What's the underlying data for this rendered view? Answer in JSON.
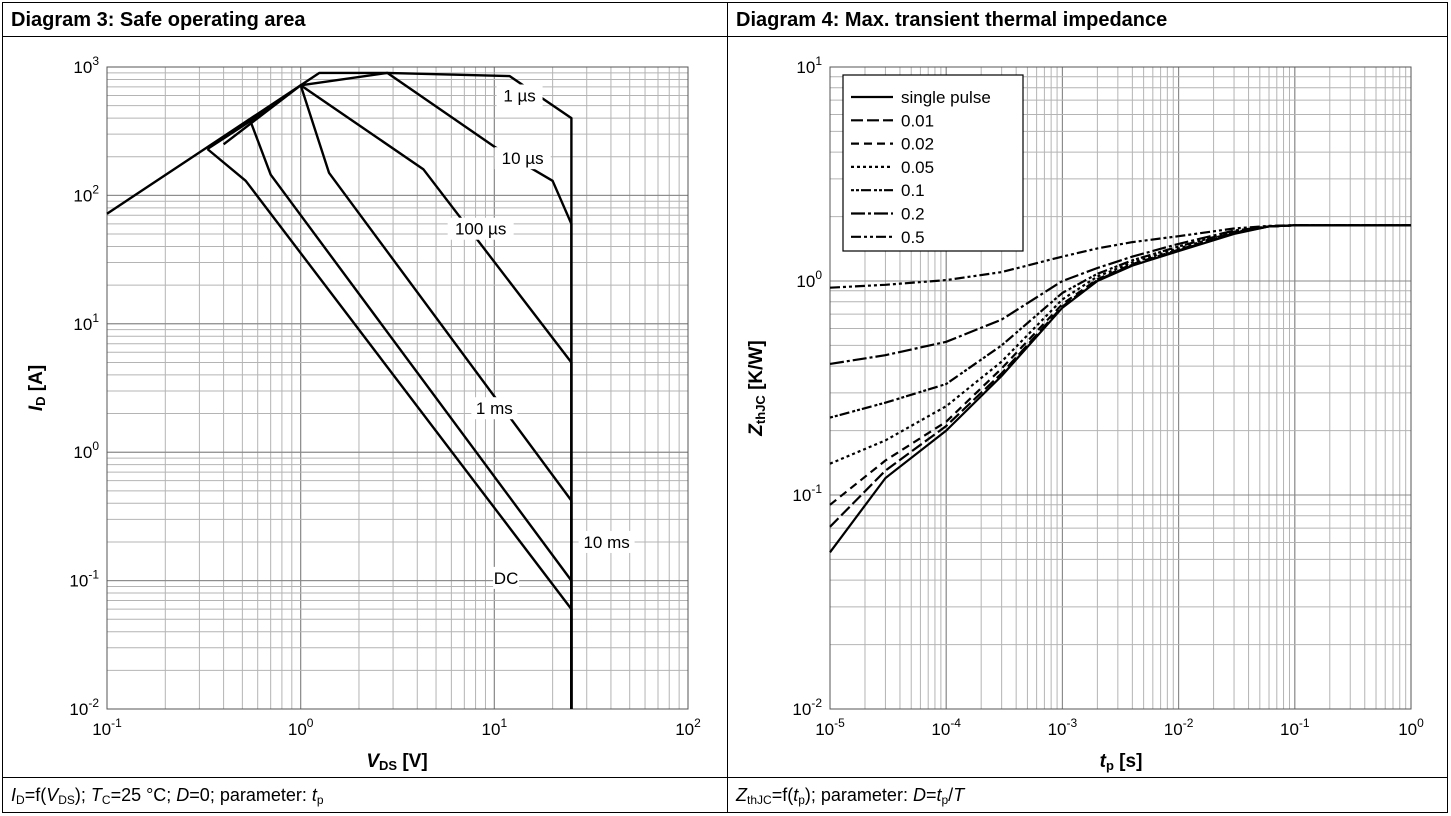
{
  "panels": [
    {
      "title": "Diagram 3: Safe operating area",
      "caption": {
        "p1": "I",
        "p1_sub": "D",
        "p2": "=f(",
        "p3": "V",
        "p3_sub": "DS",
        "p4": "); ",
        "p5": "T",
        "p5_sub": "C",
        "p6": "=25 °C; ",
        "p7": "D",
        "p8": "=0; parameter: ",
        "p9": "t",
        "p9_sub": "p"
      }
    },
    {
      "title": "Diagram 4: Max. transient thermal impedance",
      "caption": {
        "p1": "Z",
        "p1_sub": "thJC",
        "p2": "=f(",
        "p3": "t",
        "p3_sub": "p",
        "p4": "); parameter: ",
        "p5": "D",
        "p6": "=",
        "p7": "t",
        "p7_sub": "p",
        "p8": "/",
        "p9": "T"
      }
    }
  ],
  "chart_data": [
    {
      "type": "line",
      "title": "Diagram 3: Safe operating area",
      "xlabel": {
        "main": "V",
        "sub": "DS",
        "unit": " [V]"
      },
      "ylabel": {
        "main": "I",
        "sub": "D",
        "unit": " [A]"
      },
      "x_scale": "log",
      "y_scale": "log",
      "xlim": [
        0.1,
        100
      ],
      "ylim": [
        0.01,
        1000
      ],
      "grid": true,
      "x_ticks": [
        {
          "base": "10",
          "exp": "-1",
          "value": 0.1
        },
        {
          "base": "10",
          "exp": "0",
          "value": 1
        },
        {
          "base": "10",
          "exp": "1",
          "value": 10
        },
        {
          "base": "10",
          "exp": "2",
          "value": 100
        }
      ],
      "y_ticks": [
        {
          "base": "10",
          "exp": "-2",
          "value": 0.01
        },
        {
          "base": "10",
          "exp": "-1",
          "value": 0.1
        },
        {
          "base": "10",
          "exp": "0",
          "value": 1
        },
        {
          "base": "10",
          "exp": "1",
          "value": 10
        },
        {
          "base": "10",
          "exp": "2",
          "value": 100
        },
        {
          "base": "10",
          "exp": "3",
          "value": 1000
        }
      ],
      "series": [
        {
          "name": "1 µs",
          "label_at": [
            13.5,
            600
          ],
          "points": [
            [
              0.1,
              72
            ],
            [
              1.25,
              900
            ],
            [
              2.8,
              900
            ],
            [
              12,
              850
            ],
            [
              25,
              400
            ],
            [
              25,
              0.01
            ]
          ]
        },
        {
          "name": "10 µs",
          "label_at": [
            14,
            195
          ],
          "points": [
            [
              1,
              720
            ],
            [
              2.8,
              900
            ],
            [
              10,
              240
            ],
            [
              20,
              130
            ],
            [
              25,
              60
            ],
            [
              25,
              0.01
            ]
          ]
        },
        {
          "name": "100 µs",
          "label_at": [
            8.5,
            55
          ],
          "points": [
            [
              0.55,
              380
            ],
            [
              1,
              720
            ],
            [
              4.3,
              160
            ],
            [
              25,
              5
            ],
            [
              25,
              0.01
            ]
          ]
        },
        {
          "name": "1 ms",
          "label_at": [
            10,
            2.2
          ],
          "points": [
            [
              0.4,
              250
            ],
            [
              1,
              720
            ],
            [
              1.4,
              150
            ],
            [
              25,
              0.42
            ],
            [
              25,
              0.01
            ]
          ]
        },
        {
          "name": "10 ms",
          "label_at": [
            38,
            0.2
          ],
          "points": [
            [
              0.33,
              230
            ],
            [
              0.55,
              380
            ],
            [
              0.7,
              145
            ],
            [
              25,
              0.1
            ],
            [
              25,
              0.01
            ]
          ]
        },
        {
          "name": "DC",
          "label_at": [
            11.5,
            0.105
          ],
          "points": [
            [
              0.33,
              230
            ],
            [
              0.52,
              130
            ],
            [
              25,
              0.06
            ],
            [
              25,
              0.01
            ]
          ]
        }
      ]
    },
    {
      "type": "line",
      "title": "Diagram 4: Max. transient thermal impedance",
      "xlabel": {
        "main": "t",
        "sub": "p",
        "unit": " [s]"
      },
      "ylabel": {
        "main": "Z",
        "sub": "thJC",
        "unit": " [K/W]"
      },
      "x_scale": "log",
      "y_scale": "log",
      "xlim": [
        1e-05,
        1
      ],
      "ylim": [
        0.01,
        10
      ],
      "grid": true,
      "legend": "top-left",
      "x_ticks": [
        {
          "base": "10",
          "exp": "-5",
          "value": 1e-05
        },
        {
          "base": "10",
          "exp": "-4",
          "value": 0.0001
        },
        {
          "base": "10",
          "exp": "-3",
          "value": 0.001
        },
        {
          "base": "10",
          "exp": "-2",
          "value": 0.01
        },
        {
          "base": "10",
          "exp": "-1",
          "value": 0.1
        },
        {
          "base": "10",
          "exp": "0",
          "value": 1
        }
      ],
      "y_ticks": [
        {
          "base": "10",
          "exp": "-2",
          "value": 0.01
        },
        {
          "base": "10",
          "exp": "-1",
          "value": 0.1
        },
        {
          "base": "10",
          "exp": "0",
          "value": 1
        },
        {
          "base": "10",
          "exp": "1",
          "value": 10
        }
      ],
      "series": [
        {
          "name": "single pulse",
          "dash": "",
          "points": [
            [
              1e-05,
              0.054
            ],
            [
              3e-05,
              0.12
            ],
            [
              0.0001,
              0.2
            ],
            [
              0.0003,
              0.36
            ],
            [
              0.001,
              0.75
            ],
            [
              0.002,
              1.0
            ],
            [
              0.004,
              1.18
            ],
            [
              0.01,
              1.38
            ],
            [
              0.03,
              1.66
            ],
            [
              0.06,
              1.8
            ],
            [
              0.1,
              1.82
            ],
            [
              1,
              1.82
            ]
          ]
        },
        {
          "name": "0.01",
          "dash": "12 4",
          "points": [
            [
              1e-05,
              0.071
            ],
            [
              3e-05,
              0.13
            ],
            [
              0.0001,
              0.21
            ],
            [
              0.0003,
              0.37
            ],
            [
              0.001,
              0.76
            ],
            [
              0.002,
              1.01
            ],
            [
              0.004,
              1.19
            ],
            [
              0.01,
              1.39
            ],
            [
              0.03,
              1.67
            ],
            [
              0.06,
              1.8
            ],
            [
              0.1,
              1.82
            ],
            [
              1,
              1.82
            ]
          ]
        },
        {
          "name": "0.02",
          "dash": "8 5",
          "points": [
            [
              1e-05,
              0.09
            ],
            [
              3e-05,
              0.145
            ],
            [
              0.0001,
              0.22
            ],
            [
              0.0003,
              0.39
            ],
            [
              0.001,
              0.78
            ],
            [
              0.002,
              1.02
            ],
            [
              0.004,
              1.2
            ],
            [
              0.01,
              1.4
            ],
            [
              0.03,
              1.68
            ],
            [
              0.06,
              1.8
            ],
            [
              0.1,
              1.82
            ],
            [
              1,
              1.82
            ]
          ]
        },
        {
          "name": "0.05",
          "dash": "3 3",
          "points": [
            [
              1e-05,
              0.14
            ],
            [
              3e-05,
              0.18
            ],
            [
              0.0001,
              0.26
            ],
            [
              0.0003,
              0.42
            ],
            [
              0.001,
              0.82
            ],
            [
              0.002,
              1.05
            ],
            [
              0.004,
              1.22
            ],
            [
              0.01,
              1.42
            ],
            [
              0.03,
              1.69
            ],
            [
              0.06,
              1.8
            ],
            [
              0.1,
              1.82
            ],
            [
              1,
              1.82
            ]
          ]
        },
        {
          "name": "0.1",
          "dash": "3 2 3 2 10 3",
          "points": [
            [
              1e-05,
              0.23
            ],
            [
              3e-05,
              0.27
            ],
            [
              0.0001,
              0.33
            ],
            [
              0.0003,
              0.5
            ],
            [
              0.001,
              0.88
            ],
            [
              0.002,
              1.08
            ],
            [
              0.004,
              1.25
            ],
            [
              0.01,
              1.45
            ],
            [
              0.03,
              1.7
            ],
            [
              0.06,
              1.8
            ],
            [
              0.1,
              1.82
            ],
            [
              1,
              1.82
            ]
          ]
        },
        {
          "name": "0.2",
          "dash": "14 3 3 3",
          "points": [
            [
              1e-05,
              0.41
            ],
            [
              3e-05,
              0.45
            ],
            [
              0.0001,
              0.52
            ],
            [
              0.0003,
              0.66
            ],
            [
              0.001,
              1.0
            ],
            [
              0.002,
              1.15
            ],
            [
              0.004,
              1.3
            ],
            [
              0.01,
              1.49
            ],
            [
              0.03,
              1.72
            ],
            [
              0.06,
              1.8
            ],
            [
              0.1,
              1.82
            ],
            [
              1,
              1.82
            ]
          ]
        },
        {
          "name": "0.5",
          "dash": "10 3 3 3 3 3",
          "points": [
            [
              1e-05,
              0.93
            ],
            [
              3e-05,
              0.96
            ],
            [
              0.0001,
              1.01
            ],
            [
              0.0003,
              1.1
            ],
            [
              0.001,
              1.3
            ],
            [
              0.002,
              1.42
            ],
            [
              0.004,
              1.52
            ],
            [
              0.01,
              1.62
            ],
            [
              0.03,
              1.76
            ],
            [
              0.06,
              1.81
            ],
            [
              0.1,
              1.82
            ],
            [
              1,
              1.82
            ]
          ]
        }
      ]
    }
  ]
}
